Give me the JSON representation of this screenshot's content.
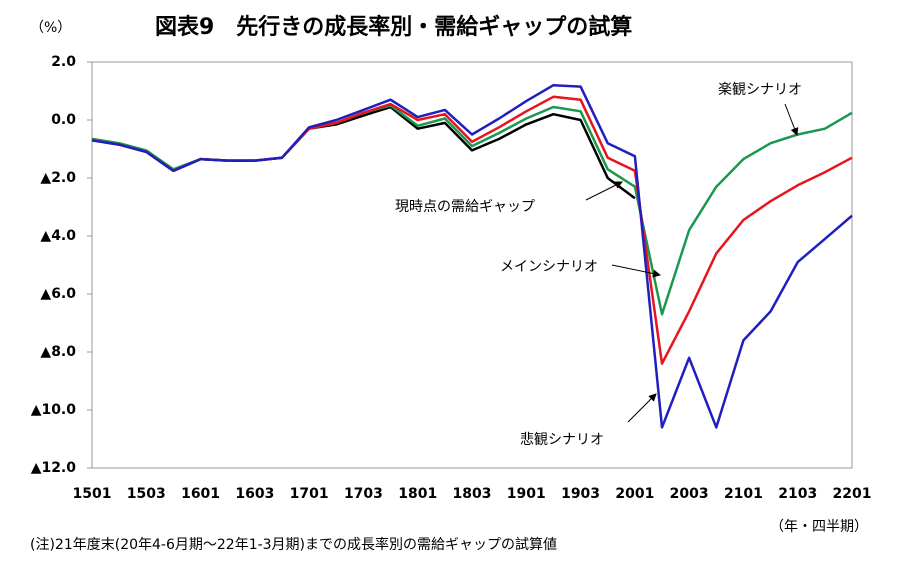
{
  "chart_data": {
    "type": "line",
    "title": "図表9　先行きの成長率別・需給ギャップの試算",
    "y_unit": "（%）",
    "x_unit": "（年・四半期）",
    "note": "(注)21年度末(20年4-6月期～22年1-3月期)までの成長率別の需給ギャップの試算値",
    "categories": [
      "1501",
      null,
      "1503",
      null,
      "1601",
      null,
      "1603",
      null,
      "1701",
      null,
      "1703",
      null,
      "1801",
      null,
      "1803",
      null,
      "1901",
      null,
      "1903",
      null,
      "2001",
      null,
      "2003",
      null,
      "2101",
      null,
      "2103",
      null,
      "2201"
    ],
    "ylim": [
      -12,
      2
    ],
    "yticks": [
      {
        "value": 2,
        "label": "2.0"
      },
      {
        "value": 0,
        "label": "0.0"
      },
      {
        "value": -2,
        "label": "▲2.0"
      },
      {
        "value": -4,
        "label": "▲4.0"
      },
      {
        "value": -6,
        "label": "▲6.0"
      },
      {
        "value": -8,
        "label": "▲8.0"
      },
      {
        "value": -10,
        "label": "▲10.0"
      },
      {
        "value": -12,
        "label": "▲12.0"
      }
    ],
    "grid": false,
    "series": [
      {
        "name": "現時点の需給ギャップ",
        "color": "#000000",
        "values": [
          -0.7,
          -0.85,
          -1.1,
          -1.75,
          -1.35,
          -1.4,
          -1.4,
          -1.3,
          -0.3,
          -0.15,
          0.15,
          0.45,
          -0.3,
          -0.1,
          -1.05,
          -0.65,
          -0.15,
          0.2,
          0.0,
          -2.0,
          -2.7,
          null,
          null,
          null,
          null,
          null,
          null,
          null,
          null
        ]
      },
      {
        "name": "楽観シナリオ",
        "color": "#1a9850",
        "values": [
          -0.65,
          -0.8,
          -1.05,
          -1.7,
          -1.35,
          -1.4,
          -1.4,
          -1.3,
          -0.3,
          -0.1,
          0.25,
          0.5,
          -0.2,
          0.05,
          -0.9,
          -0.45,
          0.05,
          0.45,
          0.3,
          -1.7,
          -2.3,
          -6.7,
          -3.8,
          -2.3,
          -1.35,
          -0.8,
          -0.5,
          -0.3,
          0.25
        ]
      },
      {
        "name": "メインシナリオ",
        "color": "#e8141c",
        "values": [
          -0.7,
          -0.85,
          -1.1,
          -1.75,
          -1.35,
          -1.4,
          -1.4,
          -1.3,
          -0.3,
          -0.1,
          0.25,
          0.55,
          0.0,
          0.2,
          -0.75,
          -0.25,
          0.3,
          0.8,
          0.7,
          -1.3,
          -1.75,
          -8.4,
          -6.6,
          -4.6,
          -3.45,
          -2.8,
          -2.25,
          -1.8,
          -1.3
        ]
      },
      {
        "name": "悲観シナリオ",
        "color": "#1f1fbf",
        "values": [
          -0.7,
          -0.85,
          -1.1,
          -1.75,
          -1.35,
          -1.4,
          -1.4,
          -1.3,
          -0.25,
          0.0,
          0.35,
          0.7,
          0.1,
          0.35,
          -0.5,
          0.05,
          0.65,
          1.2,
          1.15,
          -0.8,
          -1.25,
          -10.6,
          -8.2,
          -10.6,
          -7.6,
          -6.6,
          -4.9,
          -4.1,
          -3.3
        ]
      }
    ]
  }
}
